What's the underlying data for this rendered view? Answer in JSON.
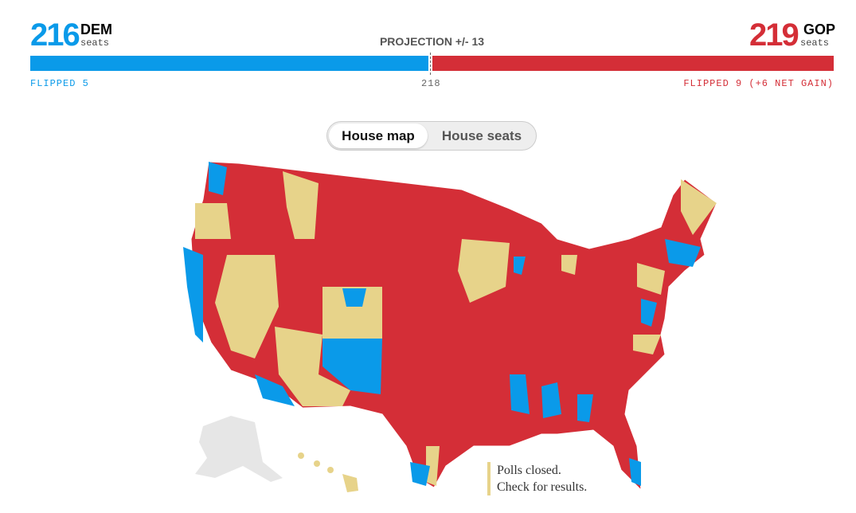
{
  "dem": {
    "count": "216",
    "label": "DEM",
    "sub": "seats",
    "flipped": "FLIPPED 5",
    "seats_value": 216
  },
  "gop": {
    "count": "219",
    "label": "GOP",
    "sub": "seats",
    "flipped": "FLIPPED 9 (+6 NET GAIN)",
    "seats_value": 219
  },
  "projection": "PROJECTION +/- 13",
  "majority": "218",
  "toggle": {
    "map": "House map",
    "seats": "House seats",
    "active": "map"
  },
  "legend": {
    "line1": "Polls closed.",
    "line2": "Check for results."
  },
  "colors": {
    "dem": "#0a9ae9",
    "gop": "#d42e37",
    "pending": "#e7d38a",
    "noelection": "#e6e6e6"
  }
}
